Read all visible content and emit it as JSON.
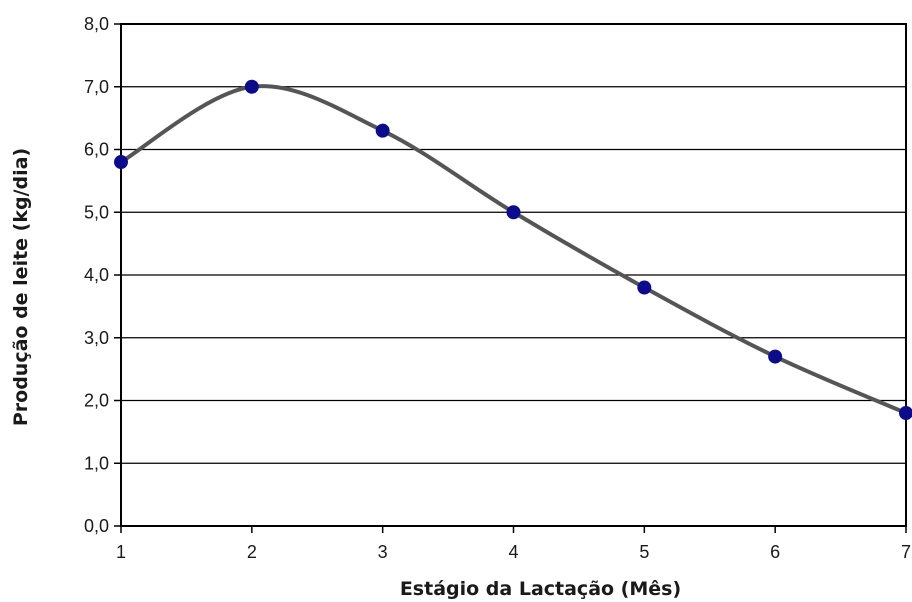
{
  "chart_data": {
    "type": "line",
    "xlabel": "Estágio da Lactação (Mês)",
    "ylabel": "Produção de leite (kg/dia)",
    "x": [
      1,
      2,
      3,
      4,
      5,
      6,
      7
    ],
    "series": [
      {
        "values": [
          5.8,
          7.0,
          6.3,
          5.0,
          3.8,
          2.7,
          1.8
        ]
      }
    ],
    "xlim": [
      1,
      7
    ],
    "ylim": [
      0,
      8
    ],
    "xticks": [
      "1",
      "2",
      "3",
      "4",
      "5",
      "6",
      "7"
    ],
    "yticks": [
      "0,0",
      "1,0",
      "2,0",
      "3,0",
      "4,0",
      "5,0",
      "6,0",
      "7,0",
      "8,0"
    ],
    "grid": "horizontal",
    "line_color": "#555555",
    "marker_color": "#0b0b8c"
  }
}
